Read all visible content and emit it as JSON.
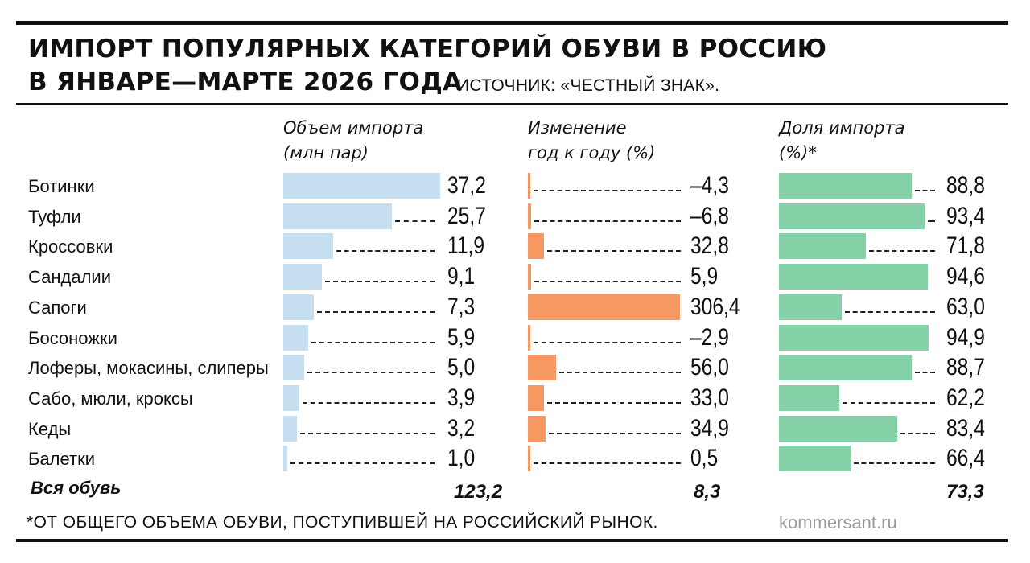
{
  "title_line1": "ИМПОРТ ПОПУЛЯРНЫХ КАТЕГОРИЙ ОБУВИ В РОССИЮ",
  "title_line2": "В ЯНВАРЕ—МАРТЕ 2026 ГОДА",
  "source": "ИСТОЧНИК: «ЧЕСТНЫЙ ЗНАК».",
  "footnote": "*ОТ ОБЩЕГО ОБЪЕМА ОБУВИ, ПОСТУПИВШЕЙ НА РОССИЙСКИЙ РЫНОК.",
  "brand": "kommersant.ru",
  "colors": {
    "volume": "#c5dff0",
    "change": "#f79862",
    "share": "#86d2a8",
    "text": "#111111"
  },
  "chart_data": [
    {
      "type": "bar",
      "title": "Объем импорта (млн пар)",
      "title_lines": [
        "Объем импорта",
        "(млн пар)"
      ],
      "categories": [
        "Ботинки",
        "Туфли",
        "Кроссовки",
        "Сандалии",
        "Сапоги",
        "Босоножки",
        "Лоферы, мокасины, слиперы",
        "Сабо, мюли, кроксы",
        "Кеды",
        "Балетки"
      ],
      "values": [
        37.2,
        25.7,
        11.9,
        9.1,
        7.3,
        5.9,
        5.0,
        3.9,
        3.2,
        1.0
      ],
      "labels": [
        "37,2",
        "25,7",
        "11,9",
        "9,1",
        "7,3",
        "5,9",
        "5,0",
        "3,9",
        "3,2",
        "1,0"
      ],
      "total_label": "Вся обувь",
      "total": "123,2"
    },
    {
      "type": "bar",
      "title": "Изменение год к году (%)",
      "title_lines": [
        "Изменение",
        "год к году (%)"
      ],
      "categories": [
        "Ботинки",
        "Туфли",
        "Кроссовки",
        "Сандалии",
        "Сапоги",
        "Босоножки",
        "Лоферы, мокасины, слиперы",
        "Сабо, мюли, кроксы",
        "Кеды",
        "Балетки"
      ],
      "values": [
        -4.3,
        -6.8,
        32.8,
        5.9,
        306.4,
        -2.9,
        56.0,
        33.0,
        34.9,
        0.5
      ],
      "labels": [
        "–4,3",
        "–6,8",
        "32,8",
        "5,9",
        "306,4",
        "–2,9",
        "56,0",
        "33,0",
        "34,9",
        "0,5"
      ],
      "total": "8,3"
    },
    {
      "type": "bar",
      "title": "Доля импорта (%)*",
      "title_lines": [
        "Доля импорта",
        "(%)*"
      ],
      "categories": [
        "Ботинки",
        "Туфли",
        "Кроссовки",
        "Сандалии",
        "Сапоги",
        "Босоножки",
        "Лоферы, мокасины, слиперы",
        "Сабо, мюли, кроксы",
        "Кеды",
        "Балетки"
      ],
      "values": [
        88.8,
        93.4,
        71.8,
        94.6,
        63.0,
        94.9,
        88.7,
        62.2,
        83.4,
        66.4
      ],
      "labels": [
        "88,8",
        "93,4",
        "71,8",
        "94,6",
        "63,0",
        "94,9",
        "88,7",
        "62,2",
        "83,4",
        "66,4"
      ],
      "total": "73,3"
    }
  ]
}
